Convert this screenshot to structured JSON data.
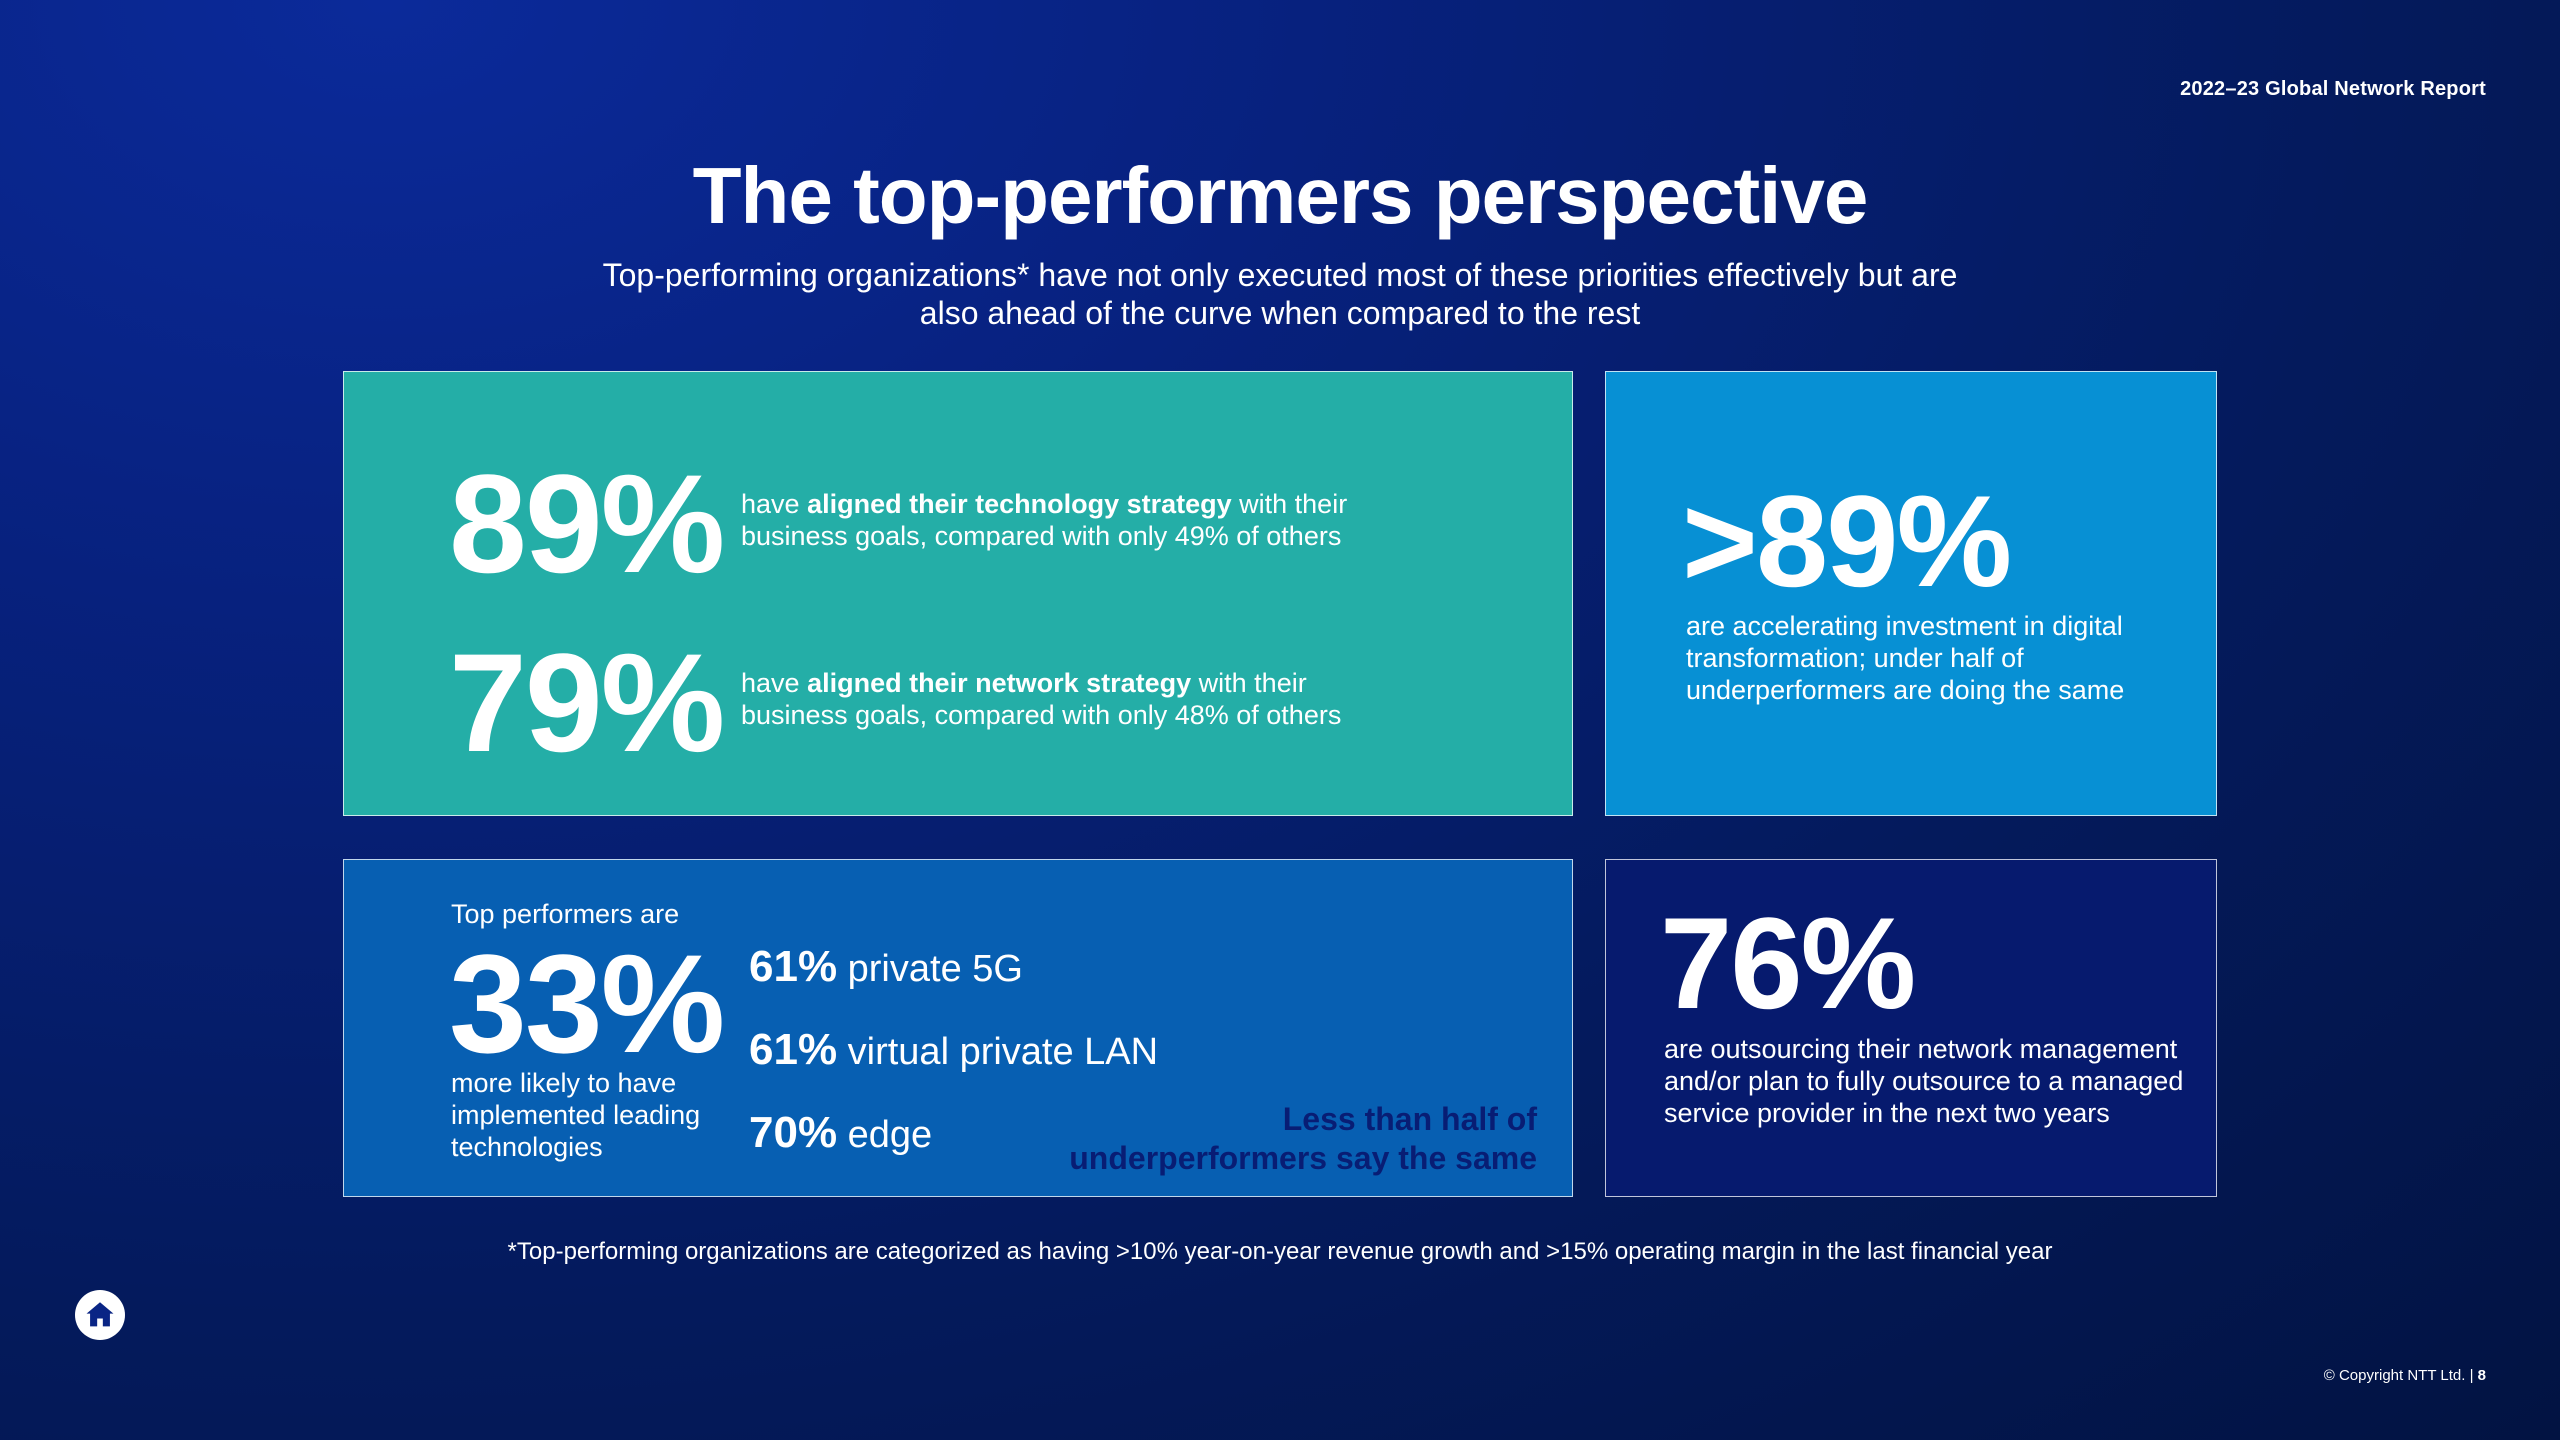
{
  "header": {
    "report_label": "2022–23 Global Network Report",
    "title": "The top-performers perspective",
    "subtitle": "Top-performing organizations* have not only executed most of these priorities effectively but are also ahead of the curve when compared to the rest"
  },
  "cards": {
    "strategy": {
      "stat1": {
        "value": "89%",
        "prefix": "have ",
        "bold": "aligned their technology strategy",
        "suffix": " with their business goals, compared with only 49% of others"
      },
      "stat2": {
        "value": "79%",
        "prefix": "have ",
        "bold": "aligned their network strategy",
        "suffix": " with their business goals, compared with only 48% of others"
      }
    },
    "investment": {
      "value": ">89%",
      "text": "are accelerating investment in digital transformation; under half of underperformers are doing the same"
    },
    "technologies": {
      "intro": "Top performers are",
      "value": "33%",
      "text": "more likely to have implemented leading technologies",
      "items": [
        {
          "pct": "61%",
          "label": "private 5G"
        },
        {
          "pct": "61%",
          "label": "virtual private LAN"
        },
        {
          "pct": "70%",
          "label": "edge"
        }
      ],
      "comparison": "Less than half of underperformers say the same"
    },
    "outsourcing": {
      "value": "76%",
      "text": "are outsourcing their network management and/or plan to fully outsource to a managed service provider in the next two years"
    }
  },
  "footnote": "*Top-performing organizations are categorized as having >10% year-on-year revenue growth and >15% operating margin in the last financial year",
  "footer": {
    "home_icon": "home-icon",
    "copyright": "© Copyright NTT Ltd. |",
    "page_number": "8"
  },
  "colors": {
    "teal_card": "#24aea7",
    "blue_card": "#0790d4",
    "mid_card": "#075fb2",
    "navy_card": "#061a6e",
    "comparison_text": "#081d74"
  }
}
